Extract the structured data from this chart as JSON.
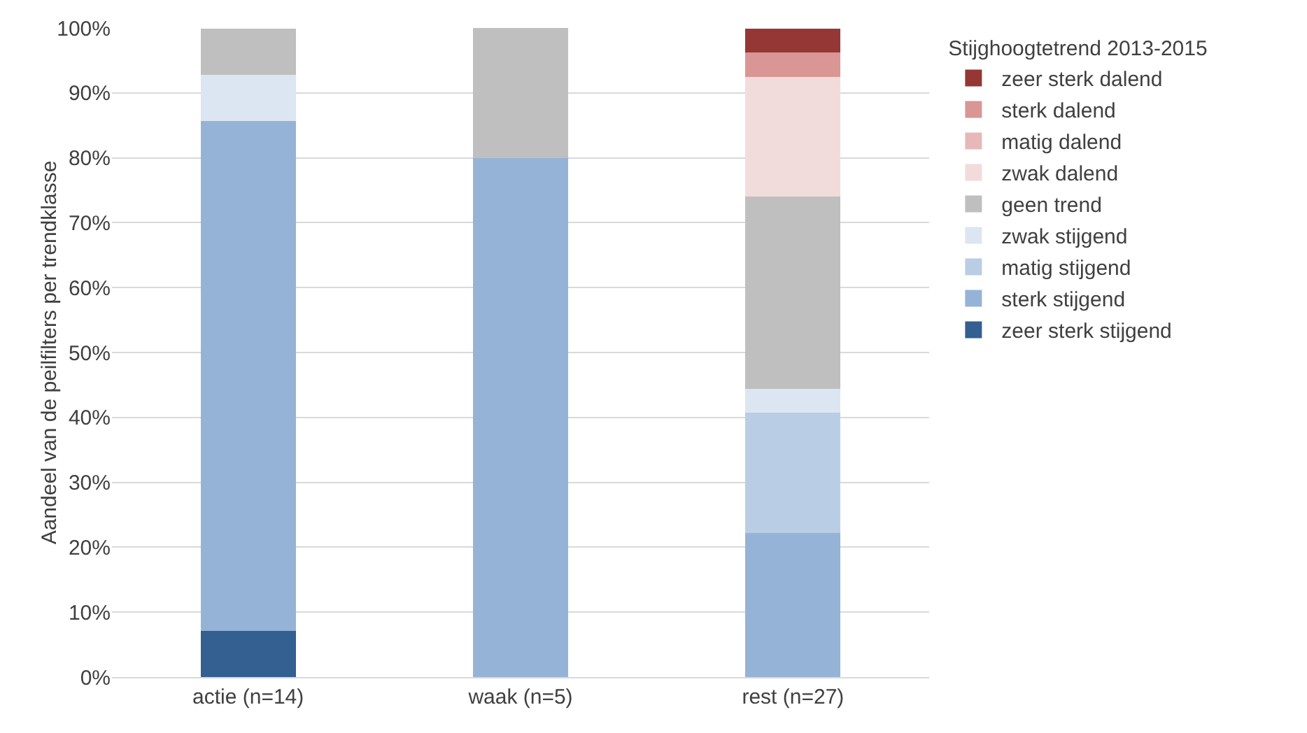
{
  "chart_data": {
    "type": "bar",
    "stacked": true,
    "ylabel": "Aandeel van de peilfilters per trendklasse",
    "legend_title": "Stijghoogtetrend 2013-2015",
    "legend": "right",
    "grid": "y",
    "categories": [
      "actie (n=14)",
      "waak (n=5)",
      "rest (n=27)"
    ],
    "ylim": [
      0,
      100
    ],
    "yticks": [
      {
        "value": 0,
        "label": "0%"
      },
      {
        "value": 10,
        "label": "10%"
      },
      {
        "value": 20,
        "label": "20%"
      },
      {
        "value": 30,
        "label": "30%"
      },
      {
        "value": 40,
        "label": "40%"
      },
      {
        "value": 50,
        "label": "50%"
      },
      {
        "value": 60,
        "label": "60%"
      },
      {
        "value": 70,
        "label": "70%"
      },
      {
        "value": 80,
        "label": "80%"
      },
      {
        "value": 90,
        "label": "90%"
      },
      {
        "value": 100,
        "label": "100%"
      }
    ],
    "series": [
      {
        "name": "zeer sterk stijgend",
        "color": "#335f91",
        "values": [
          7.1,
          0,
          0
        ]
      },
      {
        "name": "sterk stijgend",
        "color": "#95b3d7",
        "values": [
          78.6,
          80,
          22.2
        ]
      },
      {
        "name": "matig stijgend",
        "color": "#b9cde5",
        "values": [
          0,
          0,
          18.5
        ]
      },
      {
        "name": "zwak stijgend",
        "color": "#dce6f2",
        "values": [
          7.1,
          0,
          3.7
        ]
      },
      {
        "name": "geen trend",
        "color": "#bfbfbf",
        "values": [
          7.1,
          20,
          29.6
        ]
      },
      {
        "name": "zwak dalend",
        "color": "#f2dcdb",
        "values": [
          0,
          0,
          18.5
        ]
      },
      {
        "name": "matig dalend",
        "color": "#e6b9b8",
        "values": [
          0,
          0,
          0
        ]
      },
      {
        "name": "sterk dalend",
        "color": "#d99694",
        "values": [
          0,
          0,
          3.7
        ]
      },
      {
        "name": "zeer sterk dalend",
        "color": "#953735",
        "values": [
          0,
          0,
          3.7
        ]
      }
    ]
  }
}
